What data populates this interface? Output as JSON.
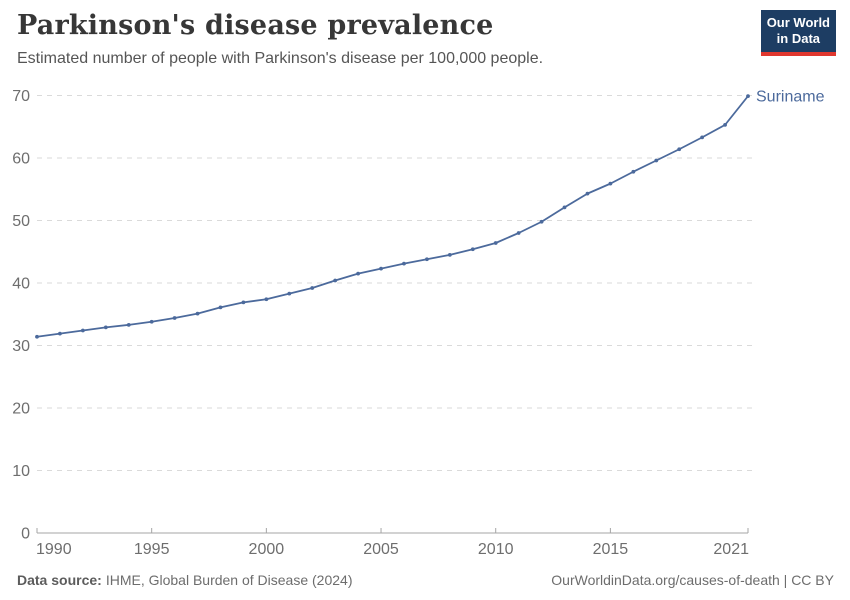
{
  "header": {
    "title": "Parkinson's disease prevalence",
    "subtitle": "Estimated number of people with Parkinson's disease per 100,000 people.",
    "logo": {
      "line1": "Our World",
      "line2": "in Data"
    }
  },
  "footer": {
    "source_label": "Data source:",
    "source_value": "IHME, Global Burden of Disease (2024)",
    "rights": "OurWorldinData.org/causes-of-death | CC BY"
  },
  "chart_data": {
    "type": "line",
    "title": "Parkinson's disease prevalence",
    "subtitle": "Estimated number of people with Parkinson's disease per 100,000 people.",
    "xlabel": "",
    "ylabel": "",
    "xlim": [
      1990,
      2021
    ],
    "ylim": [
      0,
      70
    ],
    "yticks": [
      0,
      10,
      20,
      30,
      40,
      50,
      60,
      70
    ],
    "xticks": [
      1990,
      1995,
      2000,
      2005,
      2010,
      2015,
      2021
    ],
    "grid": "horizontal-dashed",
    "legend_position": "end-of-line-label",
    "x": [
      1990,
      1991,
      1992,
      1993,
      1994,
      1995,
      1996,
      1997,
      1998,
      1999,
      2000,
      2001,
      2002,
      2003,
      2004,
      2005,
      2006,
      2007,
      2008,
      2009,
      2010,
      2011,
      2012,
      2013,
      2014,
      2015,
      2016,
      2017,
      2018,
      2019,
      2020,
      2021
    ],
    "series": [
      {
        "name": "Suriname",
        "color": "#4C6A9C",
        "values": [
          31.4,
          31.9,
          32.4,
          32.9,
          33.3,
          33.8,
          34.4,
          35.1,
          36.1,
          36.9,
          37.4,
          38.3,
          39.2,
          40.4,
          41.5,
          42.3,
          43.1,
          43.8,
          44.5,
          45.4,
          46.4,
          48.0,
          49.8,
          52.1,
          54.3,
          55.9,
          57.8,
          59.6,
          61.4,
          63.3,
          65.3,
          69.9
        ]
      }
    ],
    "colors": {
      "grid": "#dadada",
      "axis": "#a5a5a5",
      "tick_text": "#6e6e6e",
      "accent_navy": "#1d3d63",
      "accent_red": "#e0372e"
    }
  }
}
